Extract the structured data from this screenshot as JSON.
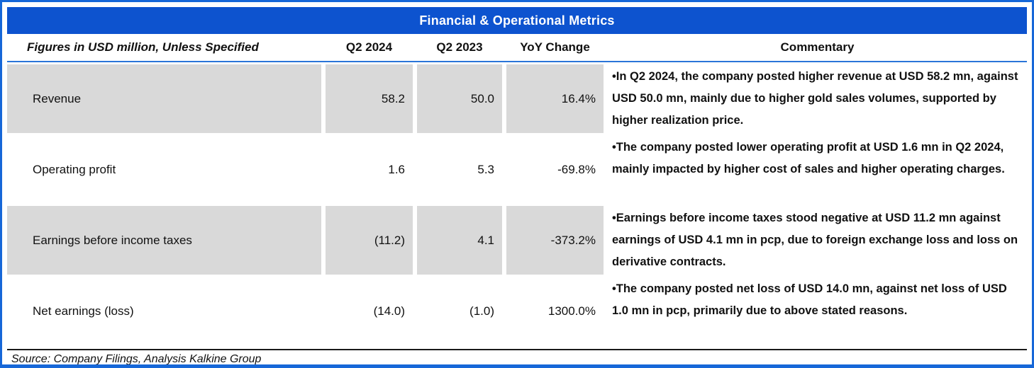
{
  "title": "Financial & Operational Metrics",
  "columns": {
    "metric": "Figures in USD million, Unless Specified",
    "q2_2024": "Q2 2024",
    "q2_2023": "Q2 2023",
    "yoy": "YoY Change",
    "commentary": "Commentary"
  },
  "rows": [
    {
      "metric": "Revenue",
      "q2_2024": "58.2",
      "q2_2023": "50.0",
      "yoy": "16.4%",
      "commentary": "•In Q2 2024, the company posted higher revenue at USD 58.2 mn, against USD 50.0 mn, mainly due to higher gold sales volumes, supported by higher realization price.",
      "shaded": true
    },
    {
      "metric": "Operating profit",
      "q2_2024": "1.6",
      "q2_2023": "5.3",
      "yoy": "-69.8%",
      "commentary": "•The company posted lower operating profit at USD 1.6 mn in Q2 2024, mainly impacted by higher cost of sales and higher operating charges.",
      "shaded": false
    },
    {
      "metric": "Earnings before income taxes",
      "q2_2024": "(11.2)",
      "q2_2023": "4.1",
      "yoy": "-373.2%",
      "commentary": "•Earnings before income taxes stood negative at USD 11.2 mn against earnings of USD 4.1 mn in pcp, due to foreign exchange loss and loss on derivative contracts.",
      "shaded": true
    },
    {
      "metric": "Net earnings (loss)",
      "q2_2024": "(14.0)",
      "q2_2023": "(1.0)",
      "yoy": "1300.0%",
      "commentary": "•The company posted net loss of USD 14.0 mn, against net loss of USD 1.0 mn in pcp, primarily due to above stated reasons.",
      "shaded": false
    }
  ],
  "source": "Source: Company Filings, Analysis Kalkine Group",
  "colors": {
    "header_blue": "#0d53cf",
    "border_blue": "#1667d8",
    "header_underline_blue": "#2a75d8",
    "row_gray": "#d9d9d9"
  }
}
